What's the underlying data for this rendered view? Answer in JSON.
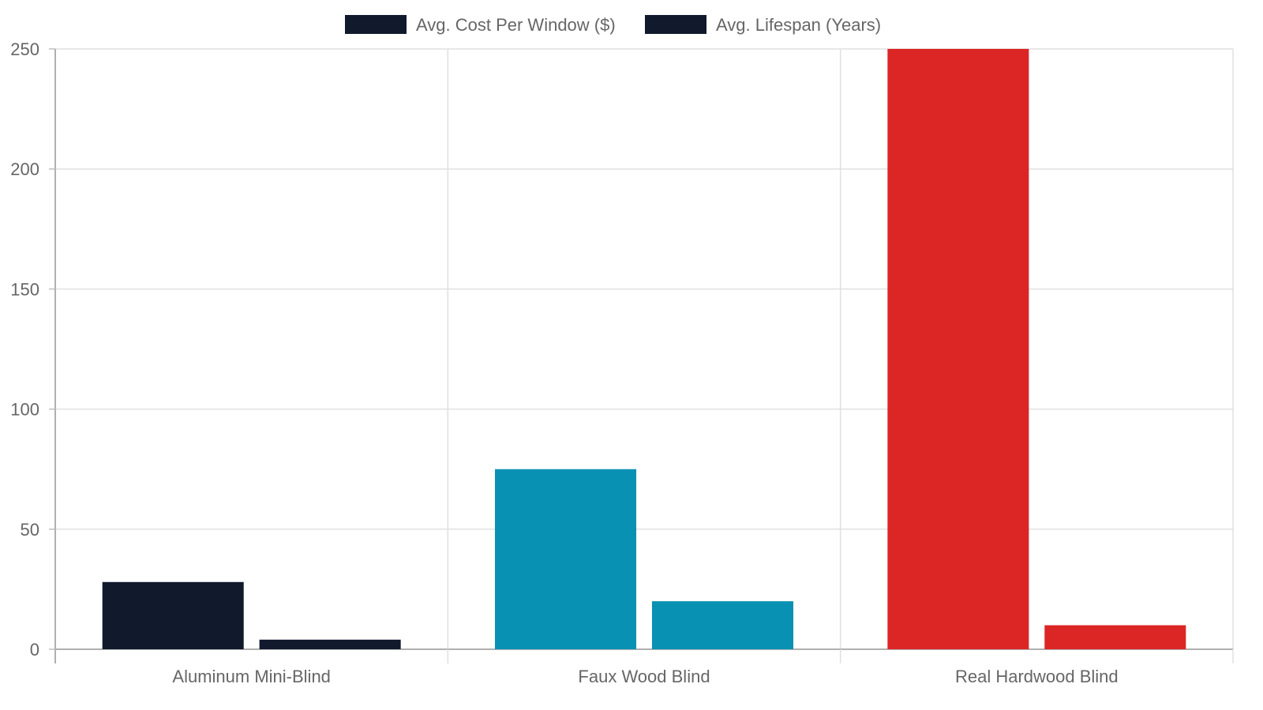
{
  "chart_data": {
    "type": "bar",
    "categories": [
      "Aluminum Mini-Blind",
      "Faux Wood Blind",
      "Real Hardwood Blind"
    ],
    "series": [
      {
        "name": "Avg. Cost Per Window ($)",
        "values": [
          28,
          75,
          250
        ]
      },
      {
        "name": "Avg. Lifespan (Years)",
        "values": [
          4,
          20,
          10
        ]
      }
    ],
    "bar_colors_by_category": [
      "#111a2c",
      "#0891b2",
      "#dc2626"
    ],
    "legend": {
      "position": "top",
      "items": [
        {
          "label": "Avg. Cost Per Window ($)",
          "color": "#111a2c"
        },
        {
          "label": "Avg. Lifespan (Years)",
          "color": "#111a2c"
        }
      ]
    },
    "y_ticks": [
      "0",
      "50",
      "100",
      "150",
      "200",
      "250"
    ],
    "ylim": [
      0,
      250
    ],
    "grid": true,
    "title": "",
    "xlabel": "",
    "ylabel": ""
  }
}
